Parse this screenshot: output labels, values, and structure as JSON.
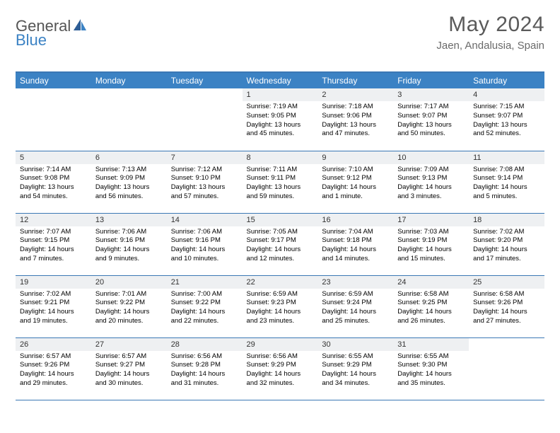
{
  "logo": {
    "text_general": "General",
    "text_blue": "Blue"
  },
  "title": "May 2024",
  "location": "Jaen, Andalusia, Spain",
  "colors": {
    "header_bg": "#3b82c4",
    "header_text": "#ffffff",
    "border": "#3b78b5",
    "daynum_bg": "#eef0f2",
    "title_color": "#5a5a5a",
    "location_color": "#6a6a6a"
  },
  "day_headers": [
    "Sunday",
    "Monday",
    "Tuesday",
    "Wednesday",
    "Thursday",
    "Friday",
    "Saturday"
  ],
  "weeks": [
    [
      {
        "empty": true
      },
      {
        "empty": true
      },
      {
        "empty": true
      },
      {
        "num": "1",
        "sunrise": "7:19 AM",
        "sunset": "9:05 PM",
        "daylight": "13 hours and 45 minutes."
      },
      {
        "num": "2",
        "sunrise": "7:18 AM",
        "sunset": "9:06 PM",
        "daylight": "13 hours and 47 minutes."
      },
      {
        "num": "3",
        "sunrise": "7:17 AM",
        "sunset": "9:07 PM",
        "daylight": "13 hours and 50 minutes."
      },
      {
        "num": "4",
        "sunrise": "7:15 AM",
        "sunset": "9:07 PM",
        "daylight": "13 hours and 52 minutes."
      }
    ],
    [
      {
        "num": "5",
        "sunrise": "7:14 AM",
        "sunset": "9:08 PM",
        "daylight": "13 hours and 54 minutes."
      },
      {
        "num": "6",
        "sunrise": "7:13 AM",
        "sunset": "9:09 PM",
        "daylight": "13 hours and 56 minutes."
      },
      {
        "num": "7",
        "sunrise": "7:12 AM",
        "sunset": "9:10 PM",
        "daylight": "13 hours and 57 minutes."
      },
      {
        "num": "8",
        "sunrise": "7:11 AM",
        "sunset": "9:11 PM",
        "daylight": "13 hours and 59 minutes."
      },
      {
        "num": "9",
        "sunrise": "7:10 AM",
        "sunset": "9:12 PM",
        "daylight": "14 hours and 1 minute."
      },
      {
        "num": "10",
        "sunrise": "7:09 AM",
        "sunset": "9:13 PM",
        "daylight": "14 hours and 3 minutes."
      },
      {
        "num": "11",
        "sunrise": "7:08 AM",
        "sunset": "9:14 PM",
        "daylight": "14 hours and 5 minutes."
      }
    ],
    [
      {
        "num": "12",
        "sunrise": "7:07 AM",
        "sunset": "9:15 PM",
        "daylight": "14 hours and 7 minutes."
      },
      {
        "num": "13",
        "sunrise": "7:06 AM",
        "sunset": "9:16 PM",
        "daylight": "14 hours and 9 minutes."
      },
      {
        "num": "14",
        "sunrise": "7:06 AM",
        "sunset": "9:16 PM",
        "daylight": "14 hours and 10 minutes."
      },
      {
        "num": "15",
        "sunrise": "7:05 AM",
        "sunset": "9:17 PM",
        "daylight": "14 hours and 12 minutes."
      },
      {
        "num": "16",
        "sunrise": "7:04 AM",
        "sunset": "9:18 PM",
        "daylight": "14 hours and 14 minutes."
      },
      {
        "num": "17",
        "sunrise": "7:03 AM",
        "sunset": "9:19 PM",
        "daylight": "14 hours and 15 minutes."
      },
      {
        "num": "18",
        "sunrise": "7:02 AM",
        "sunset": "9:20 PM",
        "daylight": "14 hours and 17 minutes."
      }
    ],
    [
      {
        "num": "19",
        "sunrise": "7:02 AM",
        "sunset": "9:21 PM",
        "daylight": "14 hours and 19 minutes."
      },
      {
        "num": "20",
        "sunrise": "7:01 AM",
        "sunset": "9:22 PM",
        "daylight": "14 hours and 20 minutes."
      },
      {
        "num": "21",
        "sunrise": "7:00 AM",
        "sunset": "9:22 PM",
        "daylight": "14 hours and 22 minutes."
      },
      {
        "num": "22",
        "sunrise": "6:59 AM",
        "sunset": "9:23 PM",
        "daylight": "14 hours and 23 minutes."
      },
      {
        "num": "23",
        "sunrise": "6:59 AM",
        "sunset": "9:24 PM",
        "daylight": "14 hours and 25 minutes."
      },
      {
        "num": "24",
        "sunrise": "6:58 AM",
        "sunset": "9:25 PM",
        "daylight": "14 hours and 26 minutes."
      },
      {
        "num": "25",
        "sunrise": "6:58 AM",
        "sunset": "9:26 PM",
        "daylight": "14 hours and 27 minutes."
      }
    ],
    [
      {
        "num": "26",
        "sunrise": "6:57 AM",
        "sunset": "9:26 PM",
        "daylight": "14 hours and 29 minutes."
      },
      {
        "num": "27",
        "sunrise": "6:57 AM",
        "sunset": "9:27 PM",
        "daylight": "14 hours and 30 minutes."
      },
      {
        "num": "28",
        "sunrise": "6:56 AM",
        "sunset": "9:28 PM",
        "daylight": "14 hours and 31 minutes."
      },
      {
        "num": "29",
        "sunrise": "6:56 AM",
        "sunset": "9:29 PM",
        "daylight": "14 hours and 32 minutes."
      },
      {
        "num": "30",
        "sunrise": "6:55 AM",
        "sunset": "9:29 PM",
        "daylight": "14 hours and 34 minutes."
      },
      {
        "num": "31",
        "sunrise": "6:55 AM",
        "sunset": "9:30 PM",
        "daylight": "14 hours and 35 minutes."
      },
      {
        "empty": true
      }
    ]
  ],
  "labels": {
    "sunrise_prefix": "Sunrise: ",
    "sunset_prefix": "Sunset: ",
    "daylight_prefix": "Daylight: "
  }
}
